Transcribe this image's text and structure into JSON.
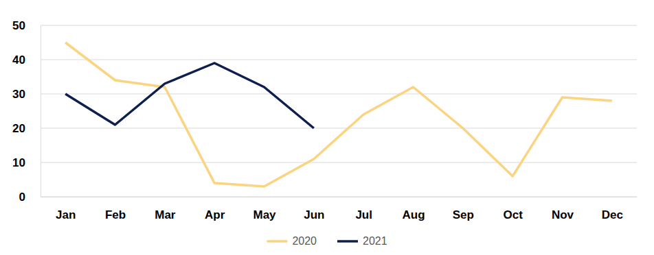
{
  "chart_data": {
    "type": "line",
    "categories": [
      "Jan",
      "Feb",
      "Mar",
      "Apr",
      "May",
      "Jun",
      "Jul",
      "Aug",
      "Sep",
      "Oct",
      "Nov",
      "Dec"
    ],
    "series": [
      {
        "name": "2020",
        "color": "#fad481",
        "values": [
          45,
          34,
          32,
          4,
          3,
          11,
          24,
          32,
          20,
          6,
          29,
          28
        ]
      },
      {
        "name": "2021",
        "color": "#0d1f4f",
        "values": [
          30,
          21,
          33,
          39,
          32,
          20,
          null,
          null,
          null,
          null,
          null,
          null
        ]
      }
    ],
    "ylim": [
      0,
      50
    ],
    "yticks": [
      0,
      10,
      20,
      30,
      40,
      50
    ],
    "grid": true,
    "legend": "bottom"
  }
}
